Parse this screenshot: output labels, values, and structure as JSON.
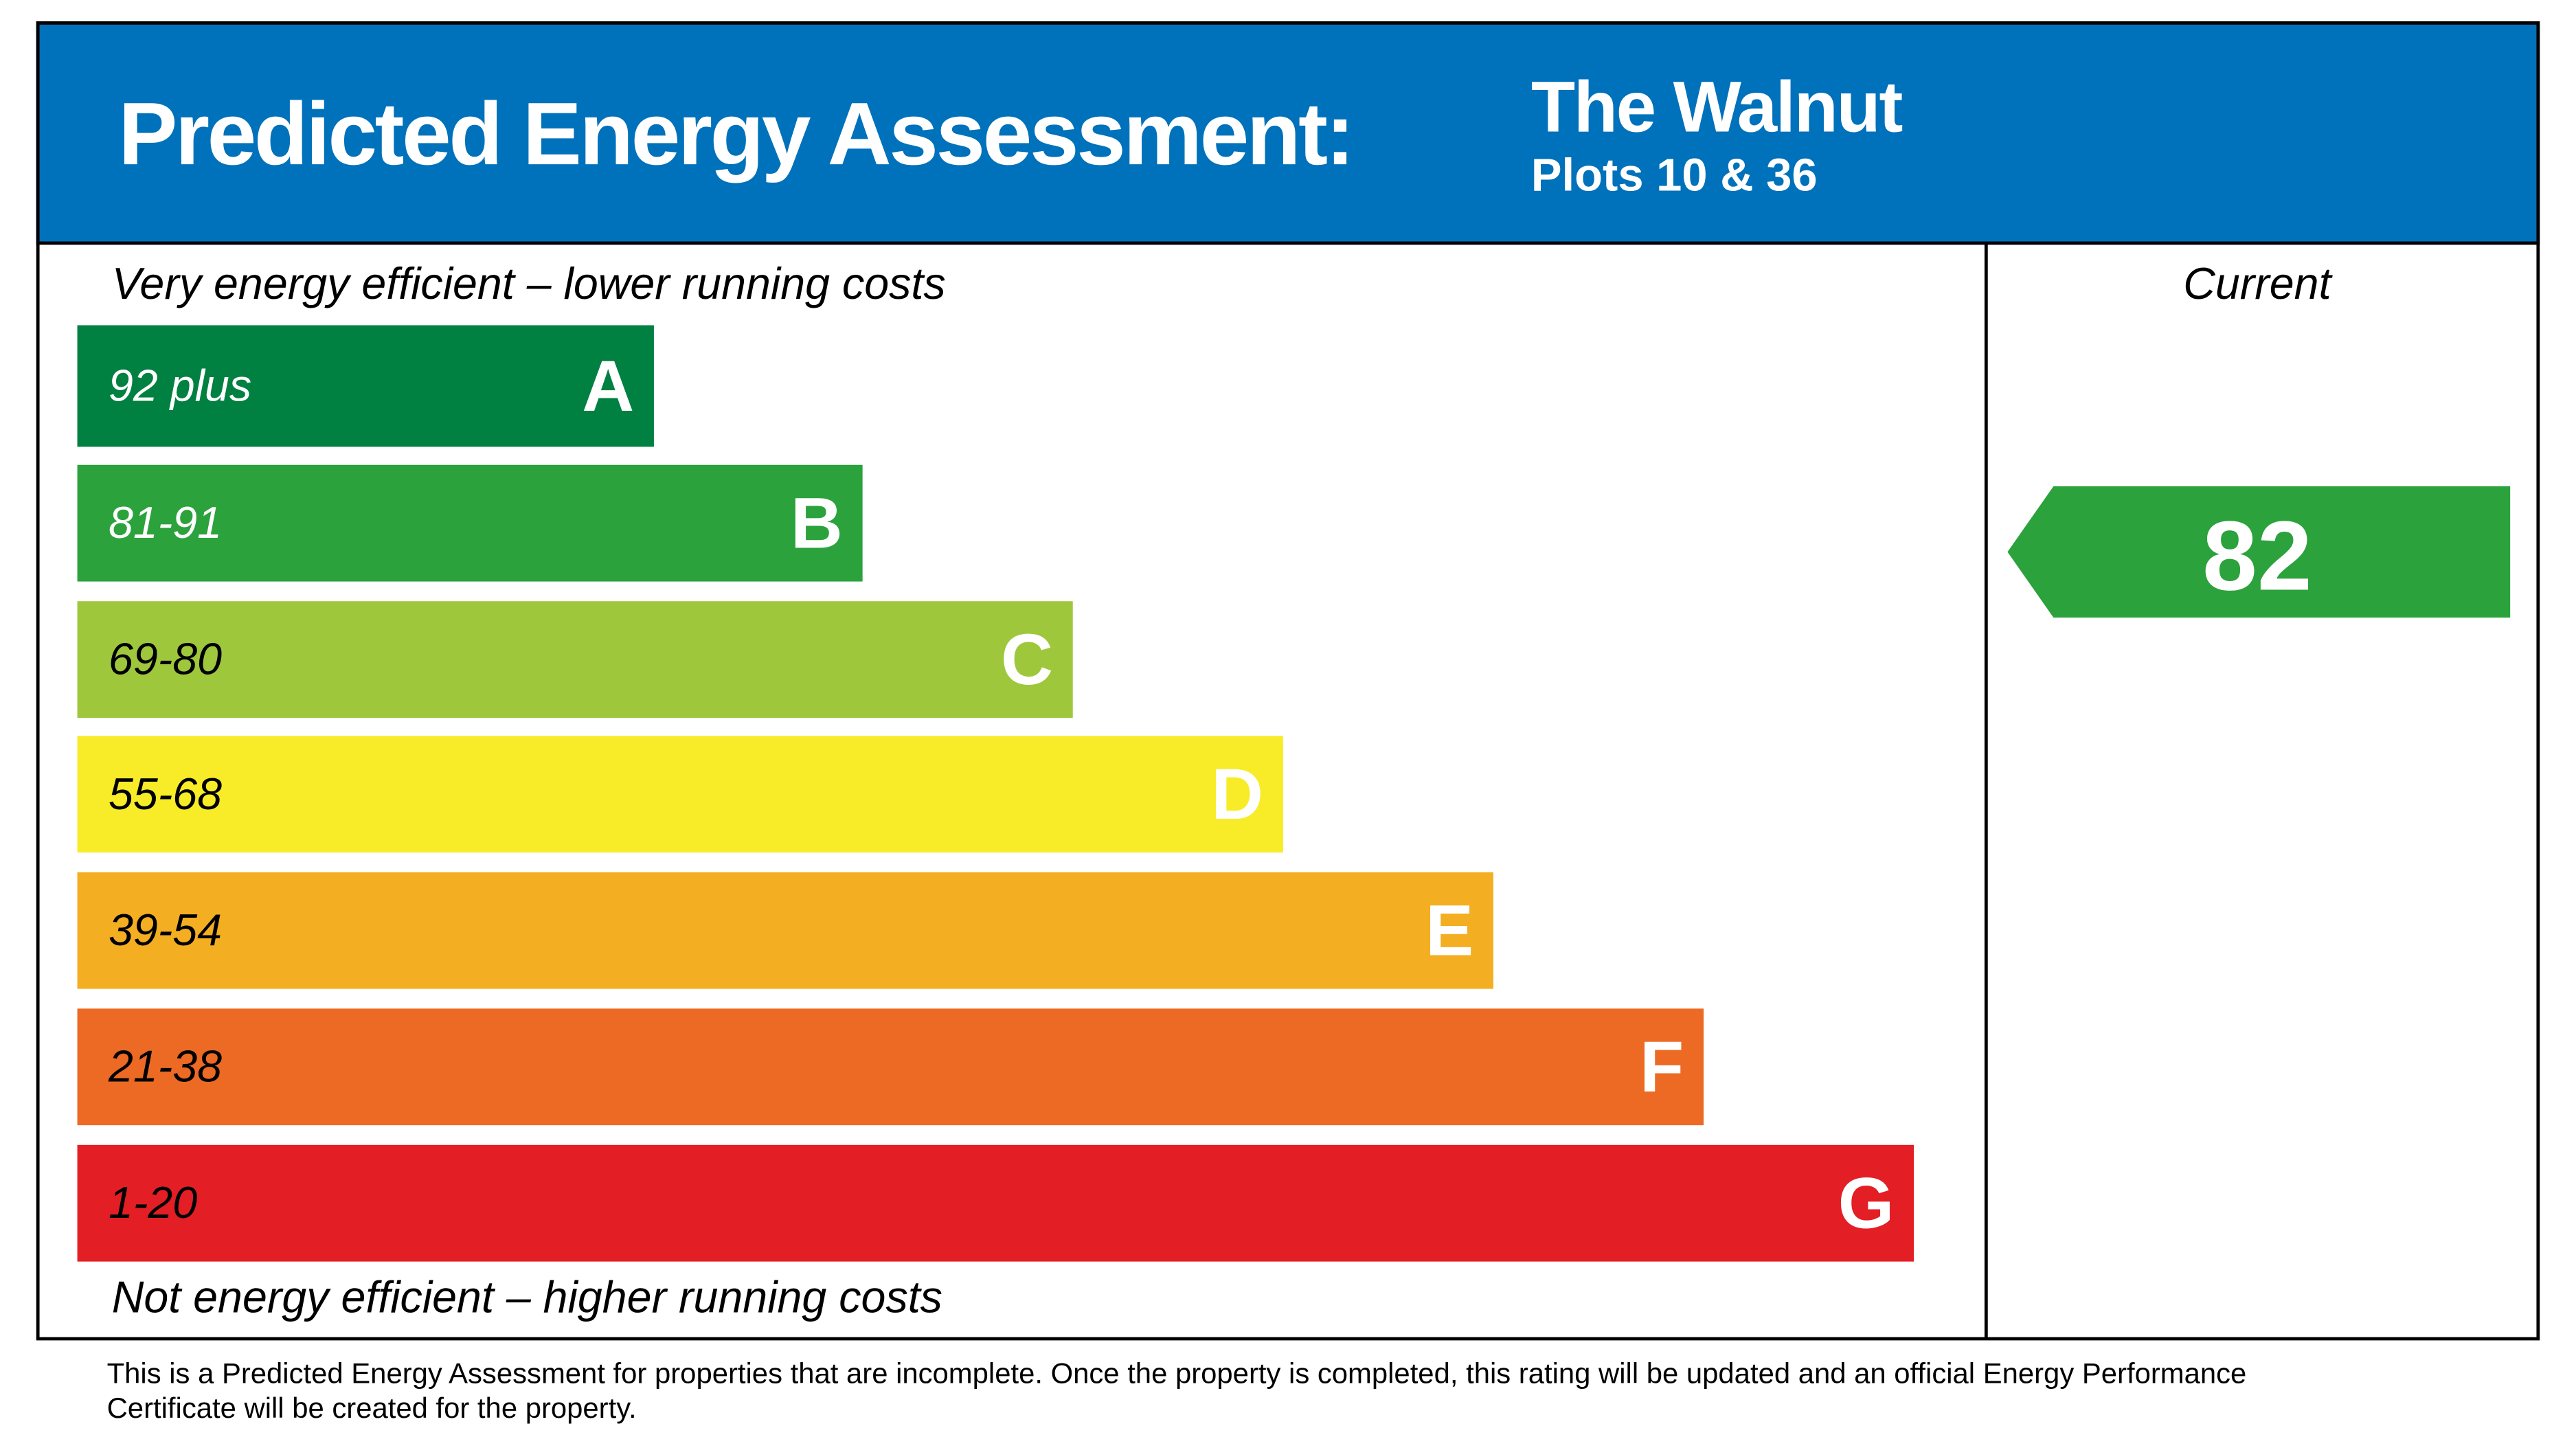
{
  "header": {
    "title": "Predicted Energy Assessment:",
    "property": "The Walnut",
    "plots": "Plots 10 & 36"
  },
  "scale": {
    "top_label": "Very energy efficient – lower running costs",
    "bottom_label": "Not energy efficient – higher running costs",
    "bands": [
      {
        "range": "92 plus",
        "letter": "A",
        "color": "#008041",
        "text_color": "#ffffff"
      },
      {
        "range": "81-91",
        "letter": "B",
        "color": "#2ba23c",
        "text_color": "#ffffff"
      },
      {
        "range": "69-80",
        "letter": "C",
        "color": "#9ec73c",
        "text_color": "#000000"
      },
      {
        "range": "55-68",
        "letter": "D",
        "color": "#f7ec27",
        "text_color": "#000000"
      },
      {
        "range": "39-54",
        "letter": "E",
        "color": "#f4ae22",
        "text_color": "#000000"
      },
      {
        "range": "21-38",
        "letter": "F",
        "color": "#ec6a24",
        "text_color": "#000000"
      },
      {
        "range": "1-20",
        "letter": "G",
        "color": "#e31e25",
        "text_color": "#000000"
      }
    ]
  },
  "current": {
    "label": "Current",
    "value": 82,
    "color": "#2ba23c"
  },
  "footnote": {
    "lines": [
      "This is a Predicted Energy Assessment for properties that are incomplete. Once the property is completed, this rating will be updated and an official Energy Performance",
      "Certificate will be created for the property."
    ]
  }
}
